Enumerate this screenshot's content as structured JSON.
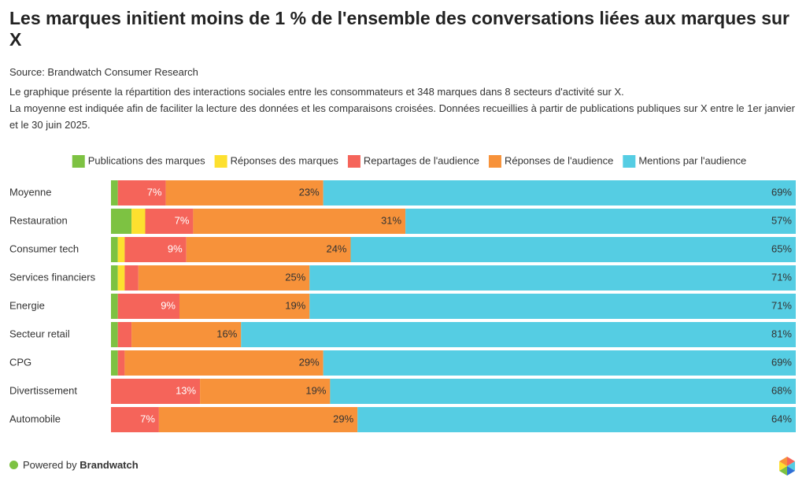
{
  "header": {
    "title": "Les marques initient moins de 1 % de l'ensemble des conversations liées aux marques sur X",
    "source": "Source: Brandwatch Consumer Research",
    "description": [
      "Le graphique présente la répartition des interactions sociales entre les consommateurs et 348 marques dans 8 secteurs d'activité sur X.",
      "La moyenne est indiquée afin de faciliter la lecture des données et les comparaisons croisées. Données recueillies à partir de publications publiques sur X entre le 1er janvier et le 30 juin 2025."
    ]
  },
  "chart_data": {
    "type": "stacked-bar-horizontal",
    "categories": [
      "Moyenne",
      "Restauration",
      "Consumer tech",
      "Services financiers",
      "Energie",
      "Secteur retail",
      "CPG",
      "Divertissement",
      "Automobile"
    ],
    "xlim": [
      0,
      100
    ],
    "series": [
      {
        "name": "Publications des marques",
        "color": "#7dc242",
        "label_color": "#333333",
        "values": [
          1,
          3,
          1,
          1,
          1,
          1,
          1,
          0,
          0
        ],
        "value_labels": [
          null,
          null,
          null,
          null,
          null,
          null,
          null,
          null,
          null
        ]
      },
      {
        "name": "Réponses des marques",
        "color": "#fde02f",
        "label_color": "#333333",
        "values": [
          0,
          2,
          1,
          1,
          0,
          0,
          0,
          0,
          0
        ],
        "value_labels": [
          null,
          null,
          null,
          null,
          null,
          null,
          null,
          null,
          null
        ]
      },
      {
        "name": "Repartages de l'audience",
        "color": "#f5645a",
        "label_color": "#ffffff",
        "values": [
          7,
          7,
          9,
          2,
          9,
          2,
          1,
          13,
          7
        ],
        "value_labels": [
          "7%",
          "7%",
          "9%",
          null,
          "9%",
          null,
          null,
          "13%",
          "7%"
        ]
      },
      {
        "name": "Réponses de l'audience",
        "color": "#f7923a",
        "label_color": "#333333",
        "values": [
          23,
          31,
          24,
          25,
          19,
          16,
          29,
          19,
          29
        ],
        "value_labels": [
          "23%",
          "31%",
          "24%",
          "25%",
          "19%",
          "16%",
          "29%",
          "19%",
          "29%"
        ]
      },
      {
        "name": "Mentions par l'audience",
        "color": "#55cde3",
        "label_color": "#333333",
        "values": [
          69,
          57,
          65,
          71,
          71,
          81,
          69,
          68,
          64
        ],
        "value_labels": [
          "69%",
          "57%",
          "65%",
          "71%",
          "71%",
          "81%",
          "69%",
          "68%",
          "64%"
        ]
      }
    ]
  },
  "footer": {
    "prefix": "Powered by",
    "brand": "Brandwatch"
  }
}
